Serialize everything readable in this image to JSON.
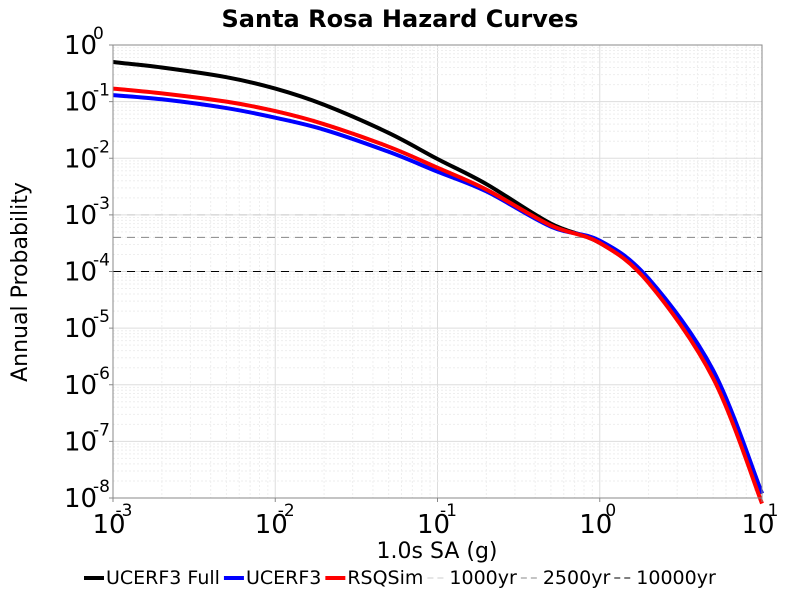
{
  "chart_data": {
    "type": "line",
    "title": "Santa Rosa Hazard Curves",
    "xlabel": "1.0s SA (g)",
    "ylabel": "Annual Probability",
    "x_scale": "log",
    "y_scale": "log",
    "xlim": [
      0.001,
      10
    ],
    "ylim": [
      1e-08,
      1
    ],
    "x_ticks": [
      {
        "base": "10",
        "exp": "-3"
      },
      {
        "base": "10",
        "exp": "-2"
      },
      {
        "base": "10",
        "exp": "-1"
      },
      {
        "base": "10",
        "exp": "0"
      },
      {
        "base": "10",
        "exp": "1"
      }
    ],
    "y_ticks": [
      {
        "base": "10",
        "exp": "0"
      },
      {
        "base": "10",
        "exp": "-1"
      },
      {
        "base": "10",
        "exp": "-2"
      },
      {
        "base": "10",
        "exp": "-3"
      },
      {
        "base": "10",
        "exp": "-4"
      },
      {
        "base": "10",
        "exp": "-5"
      },
      {
        "base": "10",
        "exp": "-6"
      },
      {
        "base": "10",
        "exp": "-7"
      },
      {
        "base": "10",
        "exp": "-8"
      }
    ],
    "grid": true,
    "legend_position": "bottom",
    "series": [
      {
        "name": "UCERF3 Full",
        "color": "#000000",
        "x": [
          0.001,
          0.002,
          0.005,
          0.01,
          0.02,
          0.05,
          0.1,
          0.2,
          0.5,
          1,
          2,
          5,
          10
        ],
        "y": [
          0.5,
          0.4,
          0.27,
          0.17,
          0.088,
          0.028,
          0.0097,
          0.0035,
          0.0007,
          0.00032,
          7e-05,
          1.6e-06,
          1.2e-08
        ]
      },
      {
        "name": "UCERF3",
        "color": "#0000ff",
        "x": [
          0.001,
          0.002,
          0.005,
          0.01,
          0.02,
          0.05,
          0.1,
          0.2,
          0.5,
          1,
          2,
          5,
          10
        ],
        "y": [
          0.13,
          0.11,
          0.077,
          0.052,
          0.032,
          0.013,
          0.0058,
          0.0026,
          0.00062,
          0.00035,
          7.5e-05,
          1.8e-06,
          1.2e-08
        ]
      },
      {
        "name": "RSQSim",
        "color": "#ff0000",
        "x": [
          0.001,
          0.002,
          0.005,
          0.01,
          0.02,
          0.05,
          0.1,
          0.2,
          0.5,
          1,
          2,
          5,
          10
        ],
        "y": [
          0.17,
          0.14,
          0.1,
          0.068,
          0.04,
          0.016,
          0.0068,
          0.0028,
          0.00065,
          0.00032,
          6.3e-05,
          1.3e-06,
          8e-09
        ]
      }
    ],
    "reference_lines": [
      {
        "name": "1000yr",
        "y": 0.001,
        "color": "#cccccc"
      },
      {
        "name": "2500yr",
        "y": 0.0004,
        "color": "#888888"
      },
      {
        "name": "10000yr",
        "y": 0.0001,
        "color": "#000000"
      }
    ]
  }
}
